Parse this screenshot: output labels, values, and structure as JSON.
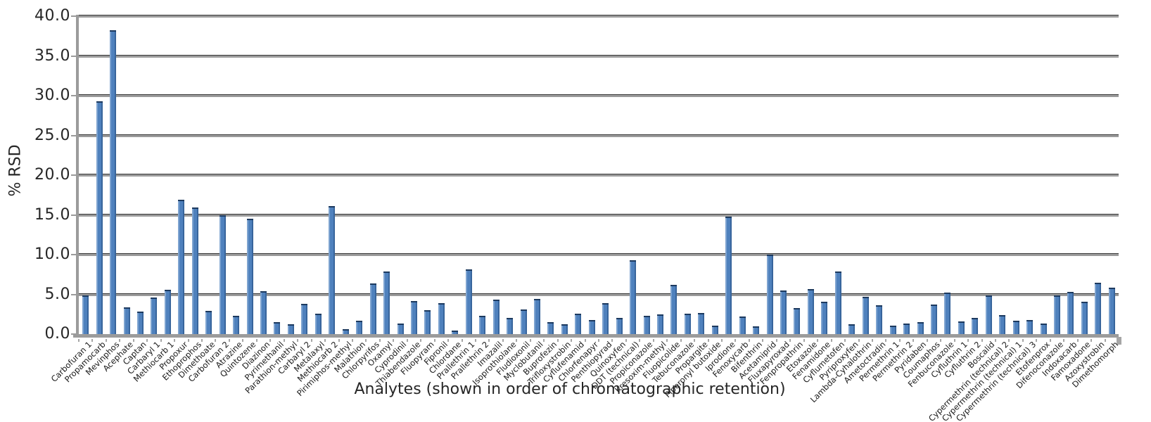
{
  "chart_data": {
    "type": "bar",
    "title": "",
    "xlabel": "Analytes (shown in order of chromatographic retention)",
    "ylabel": "% RSD",
    "ylim": [
      0,
      40
    ],
    "ytick_step": 5,
    "ytick_labels": [
      "0.0",
      "5.0",
      "10.0",
      "15.0",
      "20.0",
      "25.0",
      "30.0",
      "35.0",
      "40.0"
    ],
    "grid": true,
    "legend_position": "none",
    "bar_color": "#4F81BD",
    "bar_edge_color": "#1D3A5F",
    "axis_color": "#9B9B9B",
    "categories": [
      "Carbofuran 1",
      "Propamocarb",
      "Mevinphos",
      "Acephate",
      "Captan",
      "Carbaryl 1",
      "Methiocarb 1",
      "Propoxur",
      "Ethoprophos",
      "Dimethoate",
      "Carbofuran 2",
      "Atrazine",
      "Quintozene",
      "Diazinon",
      "Pyrimethanil",
      "Parathion-methyl",
      "Carbaryl 2",
      "Metalaxyl",
      "Methiocarb 2",
      "Pirimiphos-methyl",
      "Malathion",
      "Chlorpyrifos",
      "Oxamyl",
      "Cyprodinil",
      "Thiabendazole",
      "Fluopyram",
      "Fipronil",
      "Chlordane",
      "Prallethrin 1",
      "Prallethrin 2",
      "Imazalil",
      "Isoprothiolane",
      "Fludioxonil",
      "Myclobutanil",
      "Buprofezin",
      "Trifloxystrobin",
      "Cyflufenamid",
      "Chlorfenapyr",
      "Penthiopyrad",
      "Quinoxyfen",
      "DDT (technical)",
      "Propiconazole",
      "Kresoxim-methyl",
      "Fluopicolide",
      "Tebuconazole",
      "Propargite",
      "Piperonyl butoxide",
      "Iprodione",
      "Fenoxycarb",
      "Bifenthrin",
      "Acetamiprid",
      "Fluxapyroxad",
      "Fenpropathrin",
      "Etoxazole",
      "Fenamidone",
      "Cyflumetofen",
      "Pyriproxyfen",
      "Lambda-Cyhalothrin",
      "Ametoctradin",
      "Permethrin 1",
      "Permethrin 2",
      "Pyridaben",
      "Coumaphos",
      "Fenbuconazole",
      "Cyfluthrin 1",
      "Cyfluthrin 2",
      "Boscalid",
      "Cypermethrin (technical) 2",
      "Cypermethrin (technical) 1",
      "Cypermethrin (technical) 3",
      "Etofenprox",
      "Difenoconazole",
      "Indoxacarb",
      "Famoxadone",
      "Azoxystrobin",
      "Dimethomorph"
    ],
    "values": [
      4.9,
      29.3,
      38.2,
      3.4,
      2.8,
      4.6,
      5.6,
      16.9,
      15.9,
      2.9,
      15.0,
      2.3,
      14.5,
      5.4,
      1.5,
      1.2,
      3.8,
      2.6,
      16.1,
      0.6,
      1.7,
      6.4,
      7.9,
      1.3,
      4.2,
      3.0,
      3.9,
      0.4,
      8.1,
      2.3,
      4.3,
      2.0,
      3.1,
      4.4,
      1.5,
      1.2,
      2.6,
      1.8,
      3.9,
      2.0,
      9.3,
      2.3,
      2.5,
      6.2,
      2.6,
      2.7,
      1.1,
      14.8,
      2.2,
      1.0,
      10.0,
      5.5,
      3.3,
      5.7,
      4.1,
      7.9,
      1.2,
      4.7,
      3.6,
      1.1,
      1.3,
      1.5,
      3.7,
      5.2,
      1.6,
      2.0,
      4.9,
      2.4,
      1.7,
      1.8,
      1.3,
      4.9,
      5.3,
      4.1,
      6.5,
      5.8
    ]
  }
}
